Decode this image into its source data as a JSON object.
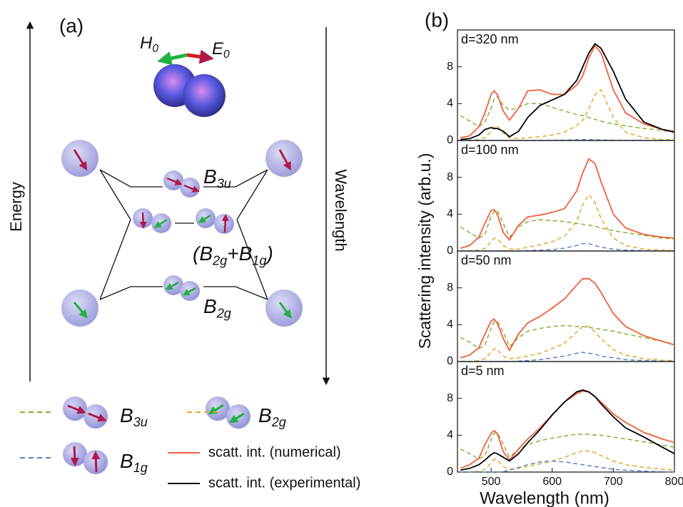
{
  "diagram": {
    "label": "(a)",
    "energy": "Energy",
    "wavelength": "Wavelength",
    "h0": [
      {
        "t": "H"
      },
      {
        "s": "0"
      }
    ],
    "e0": [
      {
        "t": "E"
      },
      {
        "s": "0"
      }
    ],
    "levels": [
      [
        {
          "t": "B"
        },
        {
          "s": "3u"
        }
      ],
      [
        {
          "t": "(B"
        },
        {
          "s": "2g"
        },
        {
          "t": "+B"
        },
        {
          "s": "1g"
        },
        {
          "t": ")"
        }
      ],
      [
        {
          "t": "B"
        },
        {
          "s": "2g"
        }
      ]
    ]
  },
  "panel_b_label": "(b)",
  "chart_data": [
    {
      "type": "line",
      "annotation": "d=320 nm",
      "ylabel": "Scattering intensity (arb.u.)",
      "x": [
        450,
        465,
        480,
        490,
        500,
        505,
        510,
        520,
        530,
        545,
        560,
        580,
        600,
        620,
        640,
        650,
        660,
        670,
        680,
        700,
        720,
        750,
        780,
        800
      ],
      "xlim": [
        445,
        800
      ],
      "ylim": [
        0,
        12
      ],
      "yticks": [
        0,
        4,
        8
      ],
      "series": [
        {
          "name": "B",
          "name_sub": "3u",
          "color": "#8aad3a",
          "dash": true,
          "values": [
            2.7,
            2.1,
            1.5,
            2.0,
            3.5,
            4.5,
            4.8,
            3.8,
            3.3,
            3.6,
            4.0,
            4.0,
            3.6,
            3.2,
            2.8,
            2.7,
            2.5,
            2.3,
            2.1,
            1.8,
            1.6,
            1.3,
            1.1,
            0.9
          ]
        },
        {
          "name": "B",
          "name_sub": "2g",
          "color": "#e3a72f",
          "dash": true,
          "values": [
            0,
            0,
            0.1,
            0.3,
            1.0,
            1.5,
            1.6,
            0.8,
            0.3,
            0.2,
            0.3,
            0.4,
            0.6,
            0.9,
            1.6,
            2.2,
            3.4,
            5.0,
            5.5,
            2.5,
            0.9,
            0.3,
            0.1,
            0.1
          ]
        },
        {
          "name": "B",
          "name_sub": "1g",
          "color": "#5b83c2",
          "dash": true,
          "values": [
            0,
            0,
            0,
            0,
            0,
            0,
            0,
            0,
            0,
            0,
            0,
            0,
            0.02,
            0.04,
            0.08,
            0.1,
            0.1,
            0.08,
            0.06,
            0.03,
            0.02,
            0,
            0,
            0
          ]
        },
        {
          "name": "scatt. int. (numerical)",
          "color": "#f0603a",
          "dash": false,
          "values": [
            0.3,
            0.5,
            1.5,
            3,
            5,
            5.4,
            5,
            3.2,
            2.2,
            3.5,
            5.4,
            5.5,
            5,
            5,
            6,
            7,
            9,
            10.3,
            9.5,
            5.5,
            3,
            1.8,
            1.2,
            1.0
          ]
        },
        {
          "name": "scatt. int. (experimental)",
          "color": "#000000",
          "dash": false,
          "values": [
            0.1,
            0.2,
            0.6,
            1.2,
            1.4,
            1.3,
            1.3,
            1.0,
            0.4,
            1.0,
            2.5,
            3.8,
            4.4,
            5.0,
            6.5,
            8,
            9.5,
            10.5,
            10,
            7.5,
            4.5,
            2.0,
            1.2,
            0.9
          ]
        }
      ]
    },
    {
      "type": "line",
      "annotation": "d=100 nm",
      "x": [
        450,
        465,
        480,
        490,
        500,
        505,
        510,
        520,
        530,
        545,
        560,
        580,
        600,
        620,
        640,
        650,
        660,
        670,
        680,
        700,
        720,
        750,
        780,
        800
      ],
      "xlim": [
        445,
        800
      ],
      "ylim": [
        0,
        12
      ],
      "yticks": [
        0,
        4,
        8
      ],
      "series": [
        {
          "color": "#8aad3a",
          "dash": true,
          "values": [
            2.6,
            2.0,
            1.4,
            1.8,
            3.8,
            4.3,
            4.4,
            3.0,
            1.5,
            2.6,
            3.2,
            3.4,
            3.3,
            3.2,
            3.0,
            2.9,
            2.8,
            2.7,
            2.5,
            2.2,
            2.0,
            1.7,
            1.4,
            1.3
          ]
        },
        {
          "color": "#e3a72f",
          "dash": true,
          "values": [
            0,
            0,
            0.1,
            0.3,
            1.0,
            1.4,
            1.3,
            0.6,
            0.2,
            0.2,
            0.4,
            0.7,
            1.0,
            1.6,
            3.2,
            5,
            6.1,
            5.3,
            3.5,
            1.4,
            0.6,
            0.2,
            0.1,
            0.05
          ]
        },
        {
          "color": "#5b83c2",
          "dash": true,
          "values": [
            0,
            0,
            0,
            0,
            0,
            0,
            0,
            0,
            0,
            0,
            0.05,
            0.1,
            0.15,
            0.3,
            0.6,
            0.8,
            0.8,
            0.6,
            0.4,
            0.2,
            0.1,
            0.05,
            0,
            0
          ]
        },
        {
          "color": "#f0603a",
          "dash": false,
          "values": [
            0.3,
            0.6,
            1.5,
            3,
            4.4,
            4.5,
            4.0,
            2.0,
            1.2,
            2.8,
            3.7,
            3.9,
            4.2,
            4.6,
            6.5,
            8.5,
            10,
            9.5,
            7.5,
            4,
            2.5,
            1.8,
            1.5,
            1.4
          ]
        }
      ]
    },
    {
      "type": "line",
      "annotation": "d=50 nm",
      "x": [
        450,
        465,
        480,
        490,
        500,
        505,
        510,
        520,
        530,
        545,
        560,
        580,
        600,
        620,
        640,
        650,
        660,
        670,
        680,
        700,
        720,
        750,
        780,
        800
      ],
      "xlim": [
        445,
        800
      ],
      "ylim": [
        0,
        12
      ],
      "yticks": [
        0,
        4,
        8
      ],
      "series": [
        {
          "color": "#8aad3a",
          "dash": true,
          "values": [
            2.6,
            2.1,
            1.4,
            1.8,
            3.6,
            4.3,
            4.4,
            3.2,
            1.6,
            2.6,
            3.3,
            3.6,
            3.8,
            3.9,
            3.8,
            3.8,
            3.7,
            3.6,
            3.5,
            3.3,
            3.0,
            2.6,
            2.2,
            1.9
          ]
        },
        {
          "color": "#e3a72f",
          "dash": true,
          "values": [
            0,
            0,
            0.1,
            0.3,
            1.0,
            1.4,
            1.3,
            0.6,
            0.3,
            0.4,
            0.6,
            0.9,
            1.4,
            2.0,
            3.2,
            3.8,
            3.8,
            3.2,
            2.5,
            1.3,
            0.7,
            0.3,
            0.15,
            0.1
          ]
        },
        {
          "color": "#5b83c2",
          "dash": true,
          "values": [
            0,
            0,
            0,
            0,
            0,
            0,
            0,
            0,
            0,
            0.05,
            0.1,
            0.2,
            0.4,
            0.6,
            0.9,
            1.0,
            0.9,
            0.8,
            0.6,
            0.4,
            0.2,
            0.1,
            0.05,
            0
          ]
        },
        {
          "color": "#f0603a",
          "dash": false,
          "values": [
            0.4,
            0.7,
            1.5,
            3,
            4.4,
            4.6,
            4.2,
            2.5,
            1.2,
            3,
            4.2,
            4.9,
            5.8,
            6.8,
            8.3,
            9,
            9,
            8.5,
            7.5,
            5.2,
            3.8,
            2.8,
            2.2,
            1.8
          ]
        }
      ]
    },
    {
      "type": "line",
      "annotation": "d=5 nm",
      "xlabel": "Wavelength (nm)",
      "x": [
        450,
        465,
        480,
        490,
        500,
        505,
        510,
        520,
        530,
        545,
        560,
        580,
        600,
        620,
        640,
        650,
        660,
        670,
        680,
        700,
        720,
        750,
        780,
        800
      ],
      "xlim": [
        445,
        800
      ],
      "ylim": [
        0,
        12
      ],
      "yticks": [
        0,
        4,
        8
      ],
      "xticks": [
        500,
        600,
        700,
        800
      ],
      "series": [
        {
          "color": "#8aad3a",
          "dash": true,
          "values": [
            2.5,
            2.0,
            1.4,
            1.8,
            3.5,
            4.2,
            4.3,
            3.0,
            1.6,
            2.5,
            3.0,
            3.4,
            3.7,
            3.9,
            4.1,
            4.1,
            4.1,
            4.0,
            4.0,
            3.8,
            3.6,
            3.3,
            2.9,
            2.7
          ]
        },
        {
          "color": "#e3a72f",
          "dash": true,
          "values": [
            0,
            0,
            0.1,
            0.3,
            1.0,
            1.4,
            1.3,
            0.6,
            0.3,
            0.4,
            0.6,
            0.9,
            1.2,
            1.6,
            2.1,
            2.3,
            2.3,
            2.1,
            1.8,
            1.2,
            0.8,
            0.5,
            0.3,
            0.2
          ]
        },
        {
          "color": "#5b83c2",
          "dash": true,
          "values": [
            0,
            0,
            0,
            0,
            0,
            0,
            0,
            0.05,
            0.2,
            0.5,
            0.8,
            1.1,
            1.2,
            1.1,
            0.9,
            0.8,
            0.7,
            0.6,
            0.5,
            0.3,
            0.2,
            0.1,
            0.05,
            0
          ]
        },
        {
          "color": "#f0603a",
          "dash": false,
          "values": [
            0.4,
            0.8,
            1.5,
            3,
            4.2,
            4.5,
            4.2,
            2.2,
            1.3,
            2.5,
            3.6,
            4.8,
            6.2,
            7.6,
            8.5,
            8.8,
            8.7,
            8.2,
            7.6,
            6.3,
            5.4,
            4.3,
            3.6,
            3.2
          ]
        },
        {
          "color": "#000000",
          "dash": false,
          "values": [
            0.2,
            0.4,
            0.8,
            1.3,
            1.9,
            2.1,
            2.0,
            1.6,
            1.2,
            2.0,
            3.2,
            4.6,
            6.2,
            7.6,
            8.7,
            8.9,
            8.7,
            8.2,
            7.4,
            6.0,
            4.8,
            3.8,
            2.7,
            2.0
          ]
        }
      ]
    }
  ]
}
